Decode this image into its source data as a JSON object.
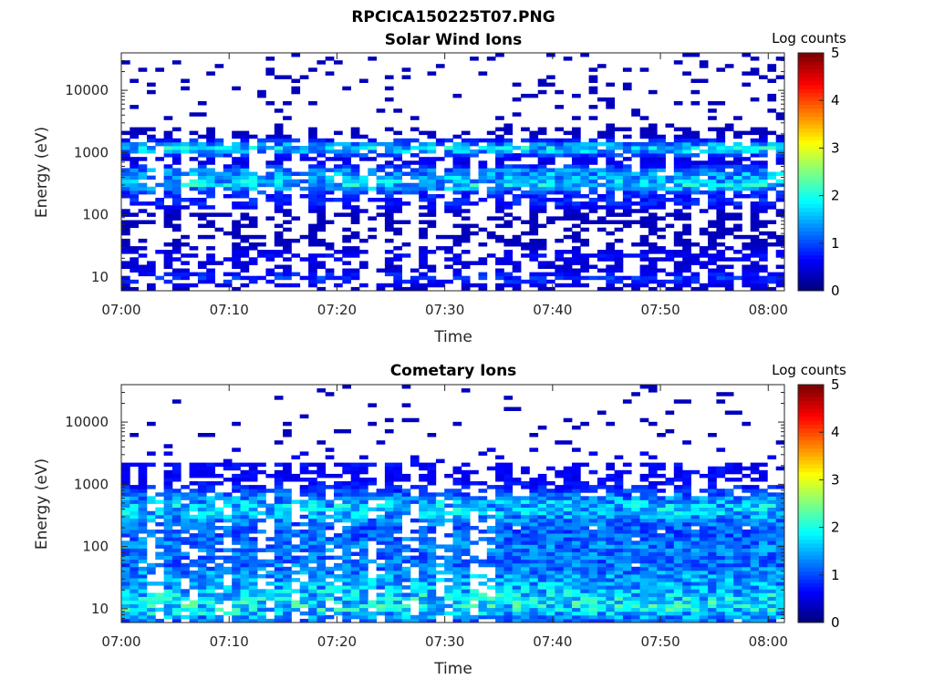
{
  "figure": {
    "title": "RPCICA150225T07.PNG"
  },
  "chart_data": [
    {
      "type": "heatmap",
      "title": "Solar Wind Ions",
      "xlabel": "Time",
      "ylabel": "Energy (eV)",
      "x_ticks": [
        "07:00",
        "07:10",
        "07:20",
        "07:30",
        "07:40",
        "07:50",
        "08:00"
      ],
      "x_range_minutes": [
        0,
        61.5
      ],
      "y_scale": "log",
      "y_ticks": [
        "10",
        "100",
        "1000",
        "10000"
      ],
      "y_range": [
        6,
        40000
      ],
      "colorbar": {
        "label": "Log counts",
        "ticks": [
          "0",
          "1",
          "2",
          "3",
          "4",
          "5"
        ],
        "range": [
          0,
          5
        ],
        "colormap": "jet"
      },
      "bands": [
        {
          "energy": 1100,
          "peak": 1.9
        },
        {
          "energy": 450,
          "peak": 1.4
        },
        {
          "energy": 280,
          "peak": 1.8
        },
        {
          "energy": 150,
          "peak": 0.7
        },
        {
          "energy": 20,
          "peak": 0.5
        },
        {
          "energy": 9,
          "peak": 0.8
        }
      ]
    },
    {
      "type": "heatmap",
      "title": "Cometary Ions",
      "xlabel": "Time",
      "ylabel": "Energy (eV)",
      "x_ticks": [
        "07:00",
        "07:10",
        "07:20",
        "07:30",
        "07:40",
        "07:50",
        "08:00"
      ],
      "x_range_minutes": [
        0,
        61.5
      ],
      "y_scale": "log",
      "y_ticks": [
        "10",
        "100",
        "1000",
        "10000"
      ],
      "y_range": [
        6,
        40000
      ],
      "colorbar": {
        "label": "Log counts",
        "ticks": [
          "0",
          "1",
          "2",
          "3",
          "4",
          "5"
        ],
        "range": [
          0,
          5
        ],
        "colormap": "jet"
      },
      "bands": [
        {
          "energy": 400,
          "peak": 1.8
        },
        {
          "energy": 100,
          "peak": 1.2
        },
        {
          "energy": 30,
          "peak": 1.3
        },
        {
          "energy": 10,
          "peak": 2.0
        },
        {
          "energy": 2000,
          "peak": 0.5
        }
      ]
    }
  ]
}
